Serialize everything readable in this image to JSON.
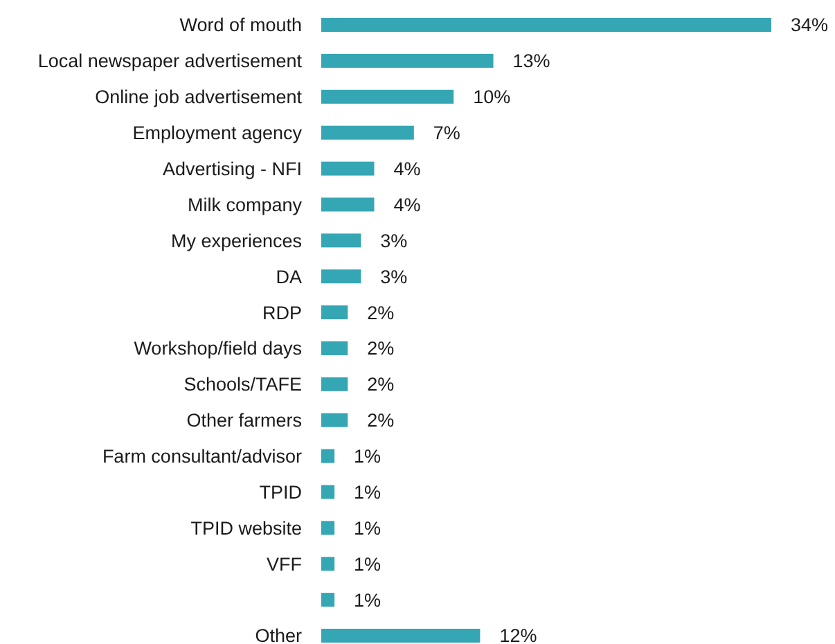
{
  "chart_data": {
    "type": "bar",
    "orientation": "horizontal",
    "categories": [
      "Word of mouth",
      "Local newspaper advertisement",
      "Online job advertisement",
      "Employment agency",
      "Advertising - NFI",
      "Milk company",
      "My experiences",
      "DA",
      "RDP",
      "Workshop/field days",
      "Schools/TAFE",
      "Other farmers",
      "Farm consultant/advisor",
      "TPID",
      "TPID website",
      "VFF",
      null,
      "Other"
    ],
    "values": [
      34,
      13,
      10,
      7,
      4,
      4,
      3,
      3,
      2,
      2,
      2,
      2,
      1,
      1,
      1,
      1,
      1,
      12
    ],
    "value_labels": [
      "34%",
      "13%",
      "10%",
      "7%",
      "4%",
      "4%",
      "3%",
      "3%",
      "2%",
      "2%",
      "2%",
      "2%",
      "1%",
      "1%",
      "1%",
      "1%",
      "1%",
      "12%"
    ],
    "color": "#35a6b4"
  }
}
